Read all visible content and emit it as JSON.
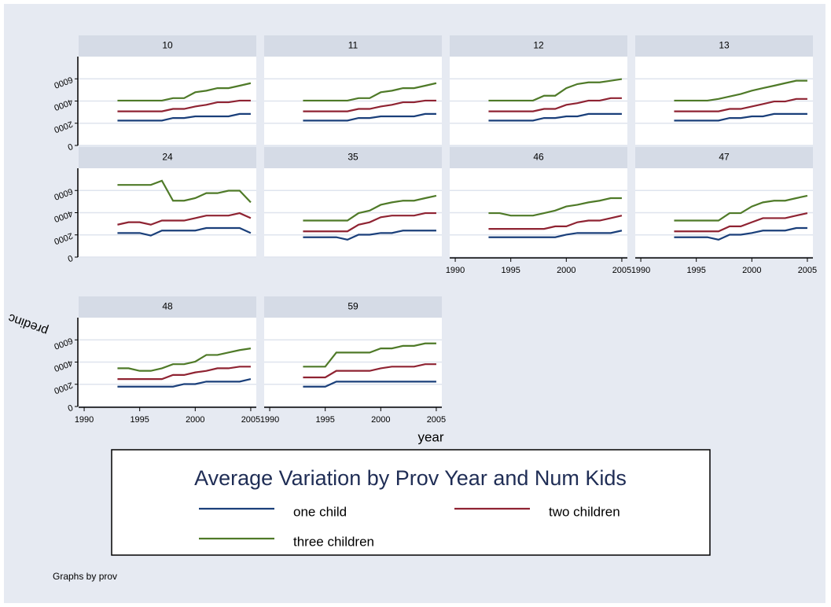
{
  "chart_data": {
    "type": "line",
    "title": "Average Variation by Prov Year and Num Kids",
    "x_label": "year",
    "y_label": "predinc",
    "note": "Graphs by prov",
    "x": [
      1993,
      1994,
      1995,
      1996,
      1997,
      1998,
      1999,
      2000,
      2001,
      2002,
      2003,
      2004,
      2005
    ],
    "xlim": [
      1989.5,
      2005.5
    ],
    "xticks": [
      1990,
      1995,
      2000,
      2005
    ],
    "ylim": [
      0,
      8000
    ],
    "yticks": [
      0,
      2000,
      4000,
      6000
    ],
    "grid": true,
    "series": [
      {
        "name": "one child",
        "color": "#1a3f7a"
      },
      {
        "name": "two children",
        "color": "#8f2332"
      },
      {
        "name": "three children",
        "color": "#4f7a28"
      }
    ],
    "panels": [
      {
        "title": "10",
        "values": [
          [
            2240,
            2240,
            2240,
            2240,
            2240,
            2470,
            2470,
            2620,
            2620,
            2620,
            2620,
            2840,
            2840
          ],
          [
            3070,
            3070,
            3070,
            3070,
            3070,
            3290,
            3290,
            3510,
            3660,
            3890,
            3890,
            4040,
            4040
          ],
          [
            4040,
            4040,
            4040,
            4040,
            4040,
            4260,
            4260,
            4790,
            4930,
            5160,
            5160,
            5380,
            5610
          ]
        ]
      },
      {
        "title": "11",
        "values": [
          [
            2240,
            2240,
            2240,
            2240,
            2240,
            2470,
            2470,
            2620,
            2620,
            2620,
            2620,
            2840,
            2840
          ],
          [
            3070,
            3070,
            3070,
            3070,
            3070,
            3290,
            3290,
            3510,
            3660,
            3890,
            3890,
            4040,
            4040
          ],
          [
            4040,
            4040,
            4040,
            4040,
            4040,
            4260,
            4260,
            4790,
            4930,
            5160,
            5160,
            5380,
            5610
          ]
        ]
      },
      {
        "title": "12",
        "values": [
          [
            2240,
            2240,
            2240,
            2240,
            2240,
            2470,
            2470,
            2620,
            2620,
            2840,
            2840,
            2840,
            2840
          ],
          [
            3070,
            3070,
            3070,
            3070,
            3070,
            3290,
            3290,
            3660,
            3810,
            4040,
            4040,
            4260,
            4260
          ],
          [
            4040,
            4040,
            4040,
            4040,
            4040,
            4480,
            4480,
            5160,
            5530,
            5680,
            5680,
            5830,
            5980
          ]
        ]
      },
      {
        "title": "13",
        "values": [
          [
            2240,
            2240,
            2240,
            2240,
            2240,
            2470,
            2470,
            2620,
            2620,
            2840,
            2840,
            2840,
            2840
          ],
          [
            3070,
            3070,
            3070,
            3070,
            3070,
            3290,
            3290,
            3510,
            3730,
            3960,
            3960,
            4190,
            4190
          ],
          [
            4040,
            4040,
            4040,
            4040,
            4190,
            4410,
            4630,
            4930,
            5160,
            5380,
            5610,
            5830,
            5830
          ]
        ]
      },
      {
        "title": "24",
        "values": [
          [
            2170,
            2170,
            2170,
            1940,
            2390,
            2390,
            2390,
            2390,
            2620,
            2620,
            2620,
            2620,
            2170
          ],
          [
            2920,
            3140,
            3140,
            2920,
            3290,
            3290,
            3290,
            3510,
            3740,
            3740,
            3740,
            3960,
            3510
          ],
          [
            6500,
            6500,
            6500,
            6500,
            6880,
            5080,
            5080,
            5310,
            5760,
            5760,
            5980,
            5980,
            4930
          ]
        ]
      },
      {
        "title": "35",
        "values": [
          [
            1790,
            1790,
            1790,
            1790,
            1570,
            2020,
            2020,
            2170,
            2170,
            2390,
            2390,
            2390,
            2390
          ],
          [
            2320,
            2320,
            2320,
            2320,
            2320,
            2920,
            3140,
            3590,
            3740,
            3740,
            3740,
            3960,
            3960
          ],
          [
            3290,
            3290,
            3290,
            3290,
            3290,
            3960,
            4190,
            4710,
            4930,
            5080,
            5080,
            5310,
            5530
          ]
        ]
      },
      {
        "title": "46",
        "values": [
          [
            1790,
            1790,
            1790,
            1790,
            1790,
            1790,
            1790,
            2020,
            2170,
            2170,
            2170,
            2170,
            2390
          ],
          [
            2540,
            2540,
            2540,
            2540,
            2540,
            2540,
            2770,
            2770,
            3140,
            3290,
            3290,
            3510,
            3740
          ],
          [
            3960,
            3960,
            3740,
            3740,
            3740,
            3960,
            4190,
            4560,
            4710,
            4930,
            5080,
            5310,
            5310
          ]
        ]
      },
      {
        "title": "47",
        "values": [
          [
            1790,
            1790,
            1790,
            1790,
            1570,
            2020,
            2020,
            2170,
            2390,
            2390,
            2390,
            2620,
            2620
          ],
          [
            2320,
            2320,
            2320,
            2320,
            2320,
            2770,
            2770,
            3140,
            3510,
            3510,
            3510,
            3740,
            3960
          ],
          [
            3290,
            3290,
            3290,
            3290,
            3290,
            3960,
            3960,
            4560,
            4930,
            5080,
            5080,
            5310,
            5530
          ]
        ]
      },
      {
        "title": "48",
        "values": [
          [
            1790,
            1790,
            1790,
            1790,
            1790,
            1790,
            2020,
            2020,
            2240,
            2240,
            2240,
            2240,
            2470
          ],
          [
            2470,
            2470,
            2470,
            2470,
            2470,
            2840,
            2840,
            3070,
            3210,
            3440,
            3440,
            3590,
            3590
          ],
          [
            3440,
            3440,
            3210,
            3210,
            3440,
            3810,
            3810,
            4040,
            4640,
            4640,
            4860,
            5080,
            5230
          ]
        ]
      },
      {
        "title": "59",
        "values": [
          [
            1790,
            1790,
            1790,
            2240,
            2240,
            2240,
            2240,
            2240,
            2240,
            2240,
            2240,
            2240,
            2240
          ],
          [
            2620,
            2620,
            2620,
            3210,
            3210,
            3210,
            3210,
            3440,
            3590,
            3590,
            3590,
            3810,
            3810
          ],
          [
            3590,
            3590,
            3590,
            4860,
            4860,
            4860,
            4860,
            5230,
            5230,
            5460,
            5460,
            5680,
            5680
          ]
        ]
      }
    ]
  }
}
